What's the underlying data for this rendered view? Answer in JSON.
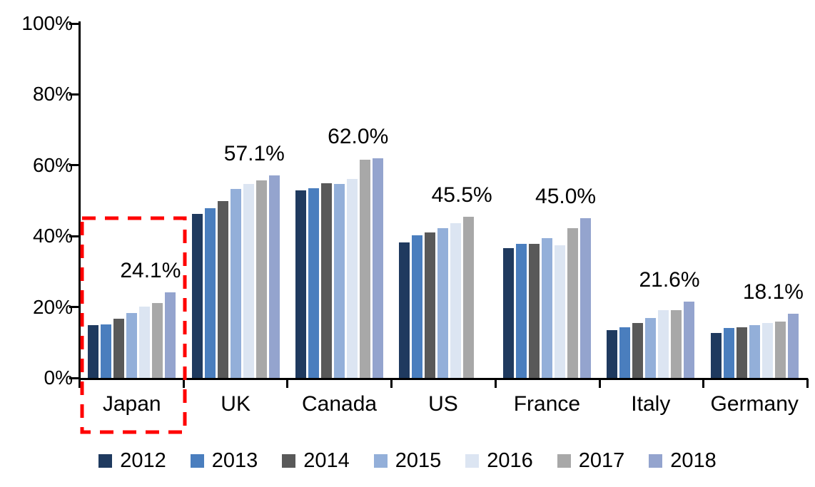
{
  "chart_data": {
    "type": "bar",
    "title": "",
    "xlabel": "",
    "ylabel": "",
    "categories": [
      "Japan",
      "UK",
      "Canada",
      "US",
      "France",
      "Italy",
      "Germany"
    ],
    "series": [
      {
        "name": "2012",
        "color": "#1F3A5F",
        "values": [
          14.9,
          46.3,
          53.0,
          38.3,
          36.6,
          13.4,
          12.6
        ]
      },
      {
        "name": "2013",
        "color": "#4A7EBE",
        "values": [
          15.1,
          47.9,
          53.5,
          40.2,
          37.8,
          14.2,
          14.1
        ]
      },
      {
        "name": "2014",
        "color": "#595959",
        "values": [
          16.7,
          50.0,
          55.0,
          41.1,
          37.8,
          15.4,
          14.3
        ]
      },
      {
        "name": "2015",
        "color": "#93AFD9",
        "values": [
          18.4,
          53.3,
          54.8,
          42.2,
          39.4,
          16.9,
          14.8
        ]
      },
      {
        "name": "2016",
        "color": "#DCE5F2",
        "values": [
          20.1,
          54.7,
          56.2,
          43.6,
          37.4,
          19.1,
          15.4
        ]
      },
      {
        "name": "2017",
        "color": "#A8A8A8",
        "values": [
          21.2,
          55.7,
          61.5,
          45.5,
          42.3,
          19.2,
          15.9
        ]
      },
      {
        "name": "2018",
        "color": "#94A4CE",
        "values": [
          24.1,
          57.1,
          62.0,
          null,
          45.0,
          21.6,
          18.1
        ]
      }
    ],
    "data_labels": [
      "24.1%",
      "57.1%",
      "62.0%",
      "45.5%",
      "45.0%",
      "21.6%",
      "18.1%"
    ],
    "y_axis": {
      "min": 0,
      "max": 100,
      "ticks": [
        "0%",
        "20%",
        "40%",
        "60%",
        "80%",
        "100%"
      ]
    },
    "grid": false,
    "legend": {
      "position": "bottom",
      "entries": [
        "2012",
        "2013",
        "2014",
        "2015",
        "2016",
        "2017",
        "2018"
      ]
    },
    "highlight": {
      "target": "Japan",
      "shape": "dashed-rectangle",
      "color": "#FF0000"
    }
  }
}
